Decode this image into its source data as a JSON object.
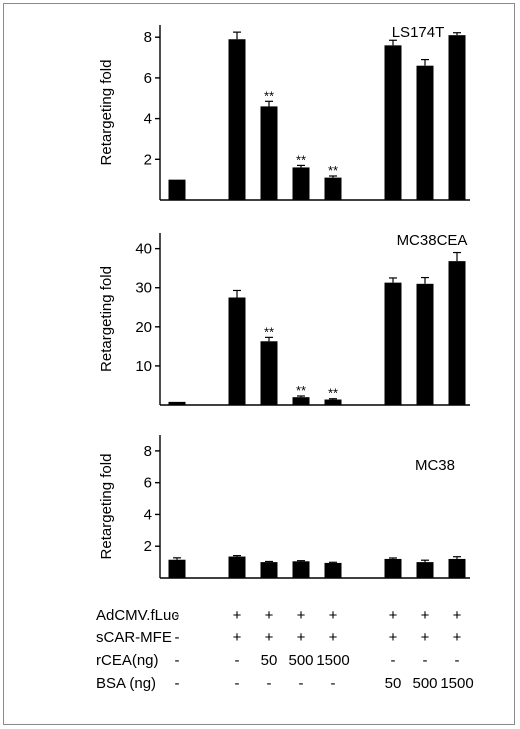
{
  "chart_data": [
    {
      "type": "bar",
      "title": "LS174T",
      "ylabel": "Retargeting fold",
      "ylim": [
        0,
        8.6
      ],
      "yticks": [
        2,
        4,
        6,
        8
      ],
      "values": [
        1.0,
        7.9,
        4.6,
        1.6,
        1.1,
        7.6,
        6.6,
        8.1
      ],
      "errors": [
        0.0,
        0.35,
        0.25,
        0.1,
        0.08,
        0.25,
        0.3,
        0.12
      ],
      "annotations": [
        "",
        "",
        "**",
        "**",
        "**",
        "",
        "",
        ""
      ]
    },
    {
      "type": "bar",
      "title": "MC38CEA",
      "ylabel": "Retargeting fold",
      "ylim": [
        0,
        44
      ],
      "yticks": [
        10,
        20,
        30,
        40
      ],
      "values": [
        0.8,
        27.5,
        16.3,
        2.0,
        1.4,
        31.3,
        31.0,
        36.8
      ],
      "errors": [
        0.0,
        1.8,
        1.0,
        0.3,
        0.2,
        1.2,
        1.6,
        2.2
      ],
      "annotations": [
        "",
        "",
        "**",
        "**",
        "**",
        "",
        "",
        ""
      ]
    },
    {
      "type": "bar",
      "title": "MC38",
      "ylabel": "Retargeting fold",
      "ylim": [
        0,
        9
      ],
      "yticks": [
        2,
        4,
        6,
        8
      ],
      "values": [
        1.15,
        1.35,
        1.0,
        1.05,
        0.95,
        1.2,
        1.0,
        1.2
      ],
      "errors": [
        0.12,
        0.06,
        0.04,
        0.04,
        0.04,
        0.06,
        0.12,
        0.14
      ],
      "annotations": [
        "",
        "",
        "",
        "",
        "",
        "",
        "",
        ""
      ]
    }
  ],
  "conditions": [
    {
      "label": "AdCMV.fLuc",
      "values": [
        "-",
        "+",
        "+",
        "+",
        "+",
        "+",
        "+",
        "+"
      ]
    },
    {
      "label": "sCAR-MFE",
      "values": [
        "-",
        "+",
        "+",
        "+",
        "+",
        "+",
        "+",
        "+"
      ]
    },
    {
      "label": "rCEA(ng)",
      "values": [
        "-",
        "-",
        "50",
        "500",
        "1500",
        "-",
        "-",
        "-"
      ]
    },
    {
      "label": "BSA (ng)",
      "values": [
        "-",
        "-",
        "-",
        "-",
        "-",
        "50",
        "500",
        "1500"
      ]
    }
  ]
}
